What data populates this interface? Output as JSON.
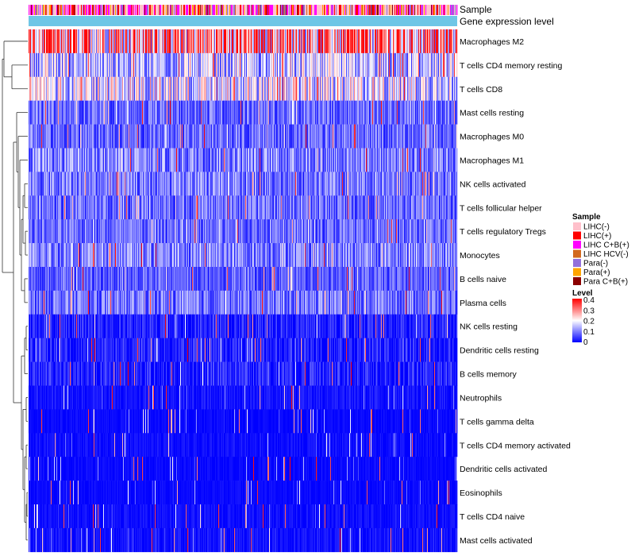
{
  "chart_data": {
    "type": "heatmap",
    "annotation_tracks": [
      "Sample",
      "Gene expression level"
    ],
    "rows": [
      {
        "name": "Macrophages M2",
        "mean": 0.27
      },
      {
        "name": "T cells CD4 memory resting",
        "mean": 0.14
      },
      {
        "name": "T cells CD8",
        "mean": 0.17
      },
      {
        "name": "Mast cells resting",
        "mean": 0.08
      },
      {
        "name": "Macrophages M0",
        "mean": 0.08
      },
      {
        "name": "Macrophages M1",
        "mean": 0.1
      },
      {
        "name": "NK cells activated",
        "mean": 0.09
      },
      {
        "name": "T cells follicular helper",
        "mean": 0.085
      },
      {
        "name": "T cells regulatory  Tregs",
        "mean": 0.08
      },
      {
        "name": "Monocytes",
        "mean": 0.1
      },
      {
        "name": "B cells naive",
        "mean": 0.07
      },
      {
        "name": "Plasma cells",
        "mean": 0.09
      },
      {
        "name": "NK cells resting",
        "mean": 0.04
      },
      {
        "name": "Dendritic cells resting",
        "mean": 0.04
      },
      {
        "name": "B cells memory",
        "mean": 0.04
      },
      {
        "name": "Neutrophils",
        "mean": 0.02
      },
      {
        "name": "T cells gamma delta",
        "mean": 0.01
      },
      {
        "name": "T cells CD4 memory activated",
        "mean": 0.015
      },
      {
        "name": "Dendritic cells activated",
        "mean": 0.01
      },
      {
        "name": "Eosinophils",
        "mean": 0.01
      },
      {
        "name": "T cells CD4 naive",
        "mean": 0.015
      },
      {
        "name": "Mast cells activated",
        "mean": 0.02
      }
    ],
    "legend": {
      "sample": {
        "title": "Sample",
        "entries": [
          {
            "label": "LIHC(-)",
            "color": "#FFC0CB"
          },
          {
            "label": "LIHC(+)",
            "color": "#FF0000"
          },
          {
            "label": "LIHC C+B(+)",
            "color": "#FF00FF"
          },
          {
            "label": "LIHC HCV(-)",
            "color": "#D2691E"
          },
          {
            "label": "Para(-)",
            "color": "#9370DB"
          },
          {
            "label": "Para(+)",
            "color": "#FFA500"
          },
          {
            "label": "Para C+B(+)",
            "color": "#8B0000"
          }
        ]
      },
      "level": {
        "title": "Level",
        "ticks": [
          "0.4",
          "0.3",
          "0.2",
          "0.1",
          "0"
        ],
        "range": [
          0,
          0.4
        ],
        "colors": [
          "#0000FF",
          "#FFFFFF",
          "#FF0000"
        ]
      }
    },
    "gene_expression_color": "#6EC6E6",
    "n_samples": 540
  }
}
